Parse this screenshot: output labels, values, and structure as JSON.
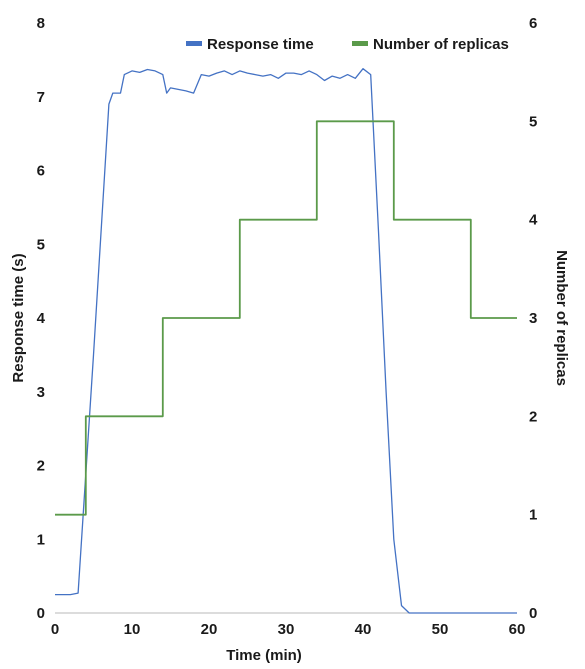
{
  "chart_data": {
    "type": "line",
    "xlabel": "Time (min)",
    "ylabel": "Response time (s)",
    "y2label": "Number of replicas",
    "xlim": [
      0,
      60
    ],
    "ylim": [
      0,
      8
    ],
    "y2lim": [
      0,
      6
    ],
    "xticks": [
      "0",
      "10",
      "20",
      "30",
      "40",
      "50",
      "60"
    ],
    "yticks": [
      "0",
      "1",
      "2",
      "3",
      "4",
      "5",
      "6",
      "7",
      "8"
    ],
    "y2ticks": [
      "0",
      "1",
      "2",
      "3",
      "4",
      "5",
      "6"
    ],
    "grid": false,
    "legend_position": "top",
    "series": [
      {
        "name": "Response time",
        "axis": "left",
        "color": "#4472C4",
        "x": [
          0,
          1,
          2,
          3,
          5,
          7,
          7.5,
          8.5,
          9,
          10,
          11,
          12,
          13,
          14,
          14.5,
          15,
          16,
          17,
          18,
          19,
          20,
          21,
          22,
          23,
          24,
          25,
          26,
          27,
          28,
          29,
          30,
          31,
          32,
          33,
          34,
          35,
          36,
          37,
          38,
          39,
          40,
          41,
          42,
          43,
          44,
          45,
          46,
          48,
          50,
          52,
          54,
          56,
          58,
          60
        ],
        "y": [
          0.25,
          0.25,
          0.25,
          0.27,
          3.5,
          6.9,
          7.05,
          7.05,
          7.3,
          7.35,
          7.33,
          7.37,
          7.35,
          7.3,
          7.05,
          7.12,
          7.1,
          7.08,
          7.05,
          7.3,
          7.28,
          7.32,
          7.35,
          7.3,
          7.35,
          7.32,
          7.3,
          7.28,
          7.3,
          7.25,
          7.32,
          7.32,
          7.3,
          7.35,
          7.3,
          7.22,
          7.28,
          7.25,
          7.3,
          7.25,
          7.38,
          7.3,
          5.2,
          3.0,
          1.0,
          0.1,
          0.0,
          0.0,
          0.0,
          0.0,
          0.0,
          0.0,
          0.0,
          0.0
        ]
      },
      {
        "name": "Number of replicas",
        "axis": "right",
        "color": "#5B9A4A",
        "step": true,
        "x": [
          0,
          4,
          14,
          24,
          34,
          44,
          54,
          60
        ],
        "y": [
          1,
          2,
          3,
          4,
          5,
          4,
          3,
          3
        ]
      }
    ]
  }
}
